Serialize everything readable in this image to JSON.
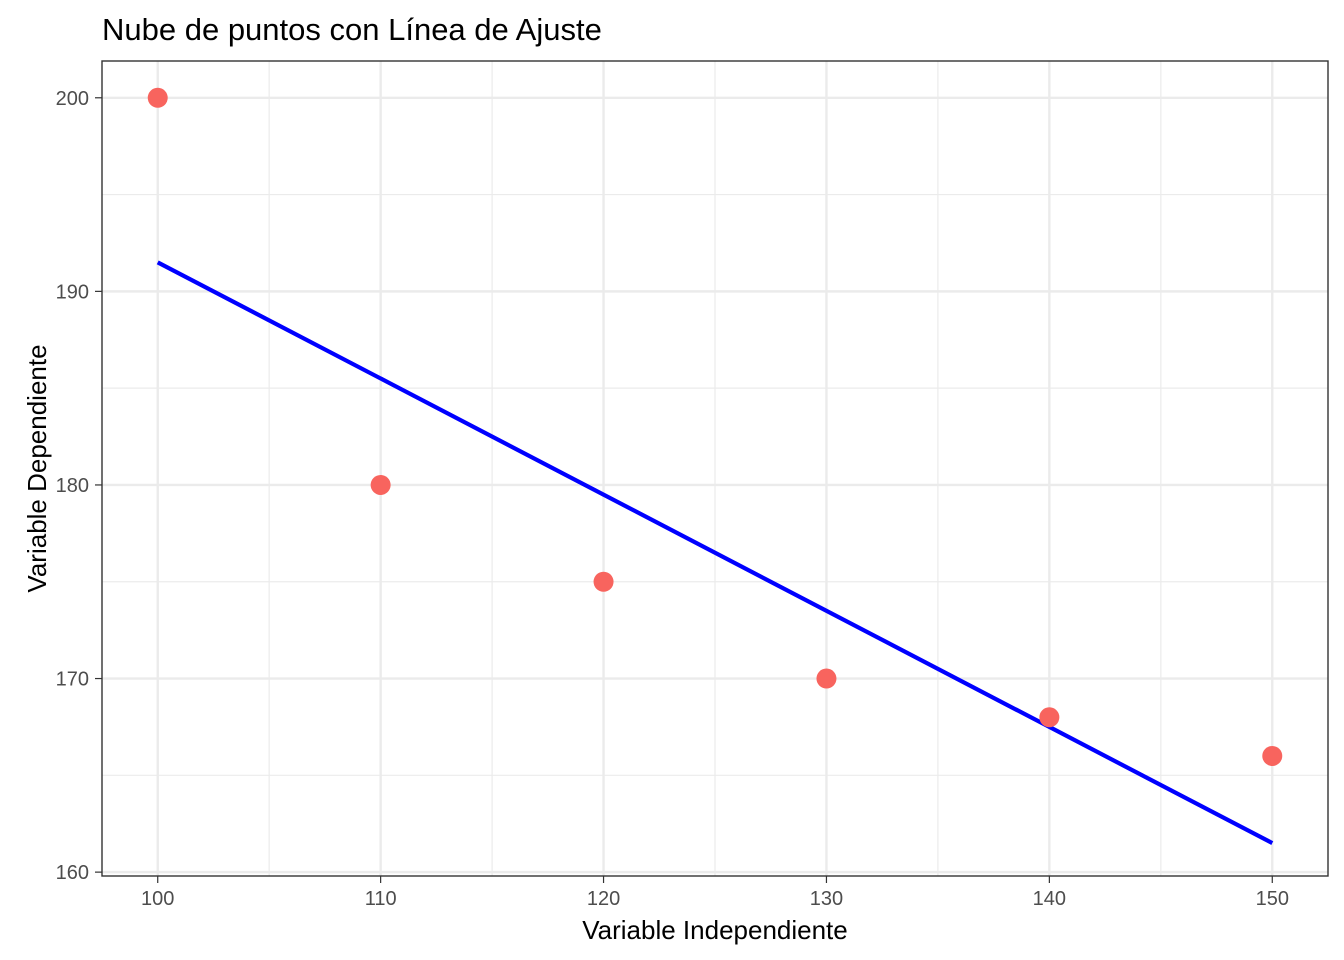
{
  "chart_data": {
    "type": "scatter",
    "title": "Nube de puntos con Línea de Ajuste",
    "xlabel": "Variable Independiente",
    "ylabel": "Variable Dependiente",
    "xlim": [
      97.5,
      152.5
    ],
    "ylim": [
      159.8,
      201.9
    ],
    "x_ticks": [
      100,
      110,
      120,
      130,
      140,
      150
    ],
    "y_ticks": [
      160,
      170,
      180,
      190,
      200
    ],
    "x_tick_labels": [
      "100",
      "110",
      "120",
      "130",
      "140",
      "150"
    ],
    "y_tick_labels": [
      "160",
      "170",
      "180",
      "190",
      "200"
    ],
    "grid": true,
    "legend": "none",
    "series": [
      {
        "type": "scatter",
        "color": "#f8645e",
        "x": [
          100,
          110,
          120,
          130,
          140,
          150
        ],
        "y": [
          200,
          180,
          175,
          170,
          168,
          166
        ]
      },
      {
        "type": "line",
        "color": "#0000ff",
        "x": [
          100,
          150
        ],
        "y": [
          191.5,
          161.5
        ]
      }
    ]
  }
}
